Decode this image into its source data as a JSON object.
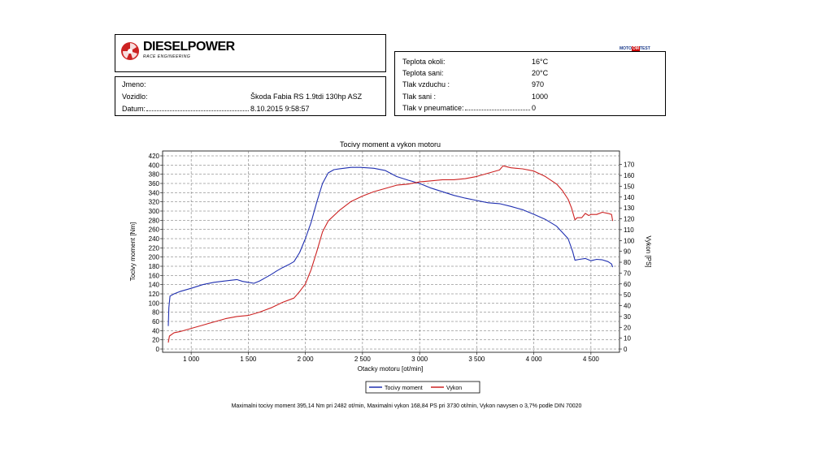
{
  "header": {
    "logo_text": "DIESELPOWER",
    "logo_sub": "RACE ENGINEERING",
    "badge_left": "MOTO",
    "badge_mid": "OM",
    "badge_right": "TEST"
  },
  "vehicle": {
    "jmeno_label": "Jmeno:",
    "jmeno_value": "",
    "vozidlo_label": "Vozidlo:",
    "vozidlo_value": "Škoda Fabia RS 1.9tdi 130hp ASZ",
    "datum_label": "Datum:",
    "datum_value": "8.10.2015 9:58:57"
  },
  "conditions": [
    {
      "label": "Teplota okoli:",
      "value": "16°C"
    },
    {
      "label": "Teplota sani:",
      "value": "20°C"
    },
    {
      "label": "Tlak vzduchu :",
      "value": "970"
    },
    {
      "label": "Tlak sani :",
      "value": "1000"
    },
    {
      "label": "Tlak v pneumatice:",
      "value": "0"
    }
  ],
  "chart_data": {
    "type": "line",
    "title": "Tocivy moment a vykon motoru",
    "xlabel": "Otacky motoru [ot/min]",
    "ylabel": "Tocivy moment [Nm]",
    "y2label": "Vykon [PS]",
    "xlim": [
      750,
      4750
    ],
    "ylim": [
      0,
      420
    ],
    "y2lim": [
      0,
      178
    ],
    "x_ticks": [
      1000,
      1500,
      2000,
      2500,
      3000,
      3500,
      4000,
      4500
    ],
    "x_tick_labels": [
      "1 000",
      "1 500",
      "2 000",
      "2 500",
      "3 000",
      "3 500",
      "4 000",
      "4 500"
    ],
    "y_ticks": [
      0,
      20,
      40,
      60,
      80,
      100,
      120,
      140,
      160,
      180,
      200,
      220,
      240,
      260,
      280,
      300,
      320,
      340,
      360,
      380,
      400,
      420
    ],
    "y2_ticks": [
      0,
      10,
      20,
      30,
      40,
      50,
      60,
      70,
      80,
      90,
      100,
      110,
      120,
      130,
      140,
      150,
      160,
      170
    ],
    "grid": true,
    "legend_position": "bottom-center",
    "series": [
      {
        "name": "Tocivy moment",
        "axis": "left",
        "color": "#1f2fb0",
        "points": [
          [
            800,
            50
          ],
          [
            805,
            90
          ],
          [
            815,
            115
          ],
          [
            850,
            120
          ],
          [
            900,
            125
          ],
          [
            1000,
            132
          ],
          [
            1100,
            140
          ],
          [
            1200,
            145
          ],
          [
            1300,
            148
          ],
          [
            1400,
            151
          ],
          [
            1450,
            147
          ],
          [
            1500,
            145
          ],
          [
            1550,
            143
          ],
          [
            1600,
            148
          ],
          [
            1650,
            155
          ],
          [
            1700,
            162
          ],
          [
            1750,
            170
          ],
          [
            1800,
            177
          ],
          [
            1850,
            183
          ],
          [
            1900,
            190
          ],
          [
            1950,
            210
          ],
          [
            2000,
            240
          ],
          [
            2050,
            275
          ],
          [
            2100,
            320
          ],
          [
            2150,
            360
          ],
          [
            2200,
            383
          ],
          [
            2250,
            390
          ],
          [
            2300,
            392
          ],
          [
            2400,
            395
          ],
          [
            2482,
            395
          ],
          [
            2600,
            393
          ],
          [
            2700,
            388
          ],
          [
            2800,
            375
          ],
          [
            2900,
            367
          ],
          [
            3000,
            360
          ],
          [
            3100,
            350
          ],
          [
            3200,
            342
          ],
          [
            3300,
            334
          ],
          [
            3400,
            328
          ],
          [
            3500,
            323
          ],
          [
            3600,
            318
          ],
          [
            3700,
            316
          ],
          [
            3800,
            310
          ],
          [
            3900,
            303
          ],
          [
            4000,
            293
          ],
          [
            4100,
            282
          ],
          [
            4200,
            267
          ],
          [
            4300,
            240
          ],
          [
            4340,
            212
          ],
          [
            4360,
            193
          ],
          [
            4400,
            195
          ],
          [
            4450,
            197
          ],
          [
            4500,
            192
          ],
          [
            4550,
            195
          ],
          [
            4600,
            194
          ],
          [
            4650,
            190
          ],
          [
            4680,
            185
          ],
          [
            4690,
            178
          ]
        ]
      },
      {
        "name": "Vykon",
        "axis": "right",
        "color": "#cc2222",
        "points": [
          [
            800,
            6
          ],
          [
            810,
            12
          ],
          [
            850,
            15
          ],
          [
            900,
            16
          ],
          [
            1000,
            19
          ],
          [
            1100,
            22
          ],
          [
            1200,
            25
          ],
          [
            1300,
            28
          ],
          [
            1400,
            30
          ],
          [
            1500,
            31
          ],
          [
            1600,
            34
          ],
          [
            1700,
            38
          ],
          [
            1800,
            43
          ],
          [
            1900,
            47
          ],
          [
            1950,
            53
          ],
          [
            2000,
            60
          ],
          [
            2050,
            73
          ],
          [
            2100,
            90
          ],
          [
            2150,
            108
          ],
          [
            2200,
            118
          ],
          [
            2300,
            128
          ],
          [
            2400,
            136
          ],
          [
            2500,
            141
          ],
          [
            2600,
            145
          ],
          [
            2700,
            148
          ],
          [
            2800,
            151
          ],
          [
            2900,
            152
          ],
          [
            3000,
            154
          ],
          [
            3100,
            155
          ],
          [
            3200,
            156
          ],
          [
            3300,
            156
          ],
          [
            3400,
            157
          ],
          [
            3500,
            159
          ],
          [
            3600,
            162
          ],
          [
            3700,
            165
          ],
          [
            3730,
            168.8
          ],
          [
            3800,
            167
          ],
          [
            3900,
            166
          ],
          [
            4000,
            164
          ],
          [
            4100,
            159
          ],
          [
            4200,
            152
          ],
          [
            4250,
            146
          ],
          [
            4300,
            138
          ],
          [
            4330,
            130
          ],
          [
            4360,
            119
          ],
          [
            4380,
            121
          ],
          [
            4420,
            121
          ],
          [
            4450,
            125
          ],
          [
            4480,
            123
          ],
          [
            4500,
            124
          ],
          [
            4550,
            124
          ],
          [
            4600,
            126
          ],
          [
            4650,
            125
          ],
          [
            4680,
            124
          ],
          [
            4690,
            118
          ]
        ]
      }
    ],
    "legend": [
      {
        "label": "Tocivy moment",
        "color": "#1f2fb0"
      },
      {
        "label": "Vykon",
        "color": "#cc2222"
      }
    ]
  },
  "footer_text": "Maximalni tocivy moment 395,14 Nm pri 2482 ot/min,  Maximalni vykon 168,84 PS pri 3730 ot/min,  Vykon navysen o 3,7% podle DIN 70020"
}
